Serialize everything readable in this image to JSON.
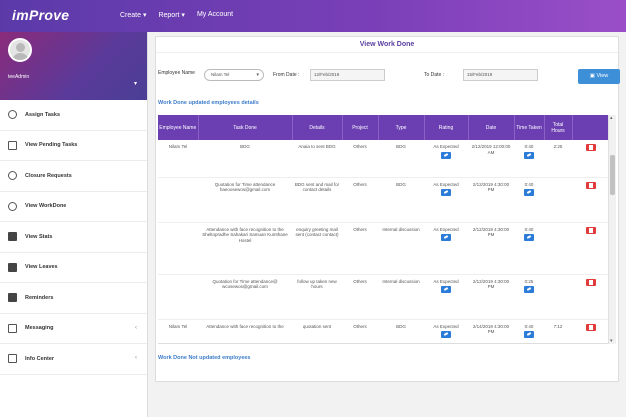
{
  "header": {
    "logo_prefix": "i",
    "logo_text": "mProve",
    "nav": [
      "Create ▾",
      "Report ▾",
      "My Account"
    ]
  },
  "sidebar": {
    "username": "teeAdmin",
    "items": [
      {
        "label": "Assign Tasks",
        "icon": "circle"
      },
      {
        "label": "View Pending Tasks",
        "icon": "square"
      },
      {
        "label": "Closure Requests",
        "icon": "circle"
      },
      {
        "label": "View WorkDone",
        "icon": "circle"
      },
      {
        "label": "View Stats",
        "icon": "solid"
      },
      {
        "label": "View Leaves",
        "icon": "solid"
      },
      {
        "label": "Reminders",
        "icon": "solid"
      },
      {
        "label": "Messaging",
        "icon": "square",
        "chevron": "‹"
      },
      {
        "label": "Info Center",
        "icon": "square",
        "chevron": "‹"
      }
    ]
  },
  "main": {
    "title": "View Work Done",
    "filters": {
      "employee_label": "Employee Name",
      "employee_value": "Nilam Tel",
      "from_label": "From Date :",
      "from_value": "12/Feb/2019",
      "to_label": "To Date :",
      "to_value": "15/Feb/2019",
      "view_label": "View"
    },
    "updated_label": "Work Done updated employees details",
    "not_updated_label": "Work Done Not updated employees",
    "columns": [
      "Employee Name",
      "Task Done",
      "Details",
      "Project",
      "Type",
      "Rating",
      "Date",
      "Time Taken",
      "Total Hours",
      ""
    ],
    "rows": [
      {
        "employee": "Nilam Tel",
        "task": "BDG",
        "details": "Anaia to sent BDG",
        "project": "Others",
        "type": "BDG",
        "rating": "As Expected",
        "date": "2/12/2019 12:00:00 AM",
        "time": "0:40",
        "total": "2:25"
      },
      {
        "employee": "",
        "task": "Quotation for Time attendance haeoosewos@gmail.com",
        "details": "BDG sent and mail for contact details",
        "project": "Others",
        "type": "BDG",
        "rating": "As Expected",
        "date": "2/12/2019 4:30:00 PM",
        "time": "0:40",
        "total": ""
      },
      {
        "employee": "",
        "task": "Attendance with face recognition to the Sheltopradhe Sahakari Samuan Kumthane Hostel",
        "details": "enquiry greeting mail sent (contact contact)",
        "project": "Others",
        "type": "Internal discussion",
        "rating": "As Expected",
        "date": "2/12/2019 4:30:00 PM",
        "time": "0:40",
        "total": ""
      },
      {
        "employee": "",
        "task": "Quotation for Time attendance@ wcosewos@gmail.com",
        "details": "follow up taken new hours",
        "project": "Others",
        "type": "Internal discussion",
        "rating": "As Expected",
        "date": "2/12/2019 4:30:00 PM",
        "time": "0:25",
        "total": ""
      },
      {
        "employee": "Nilam Tel",
        "task": "Attendance with face recognition to the",
        "details": "quotation sent",
        "project": "Others",
        "type": "BDG",
        "rating": "As Expected",
        "date": "2/14/2019 4:30:00 PM",
        "time": "0:40",
        "total": "7:12"
      }
    ]
  },
  "colors": {
    "header": "#6b3fb2",
    "accent": "#3d7cc9",
    "edit": "#2b7bd8",
    "delete": "#e23b3b"
  }
}
